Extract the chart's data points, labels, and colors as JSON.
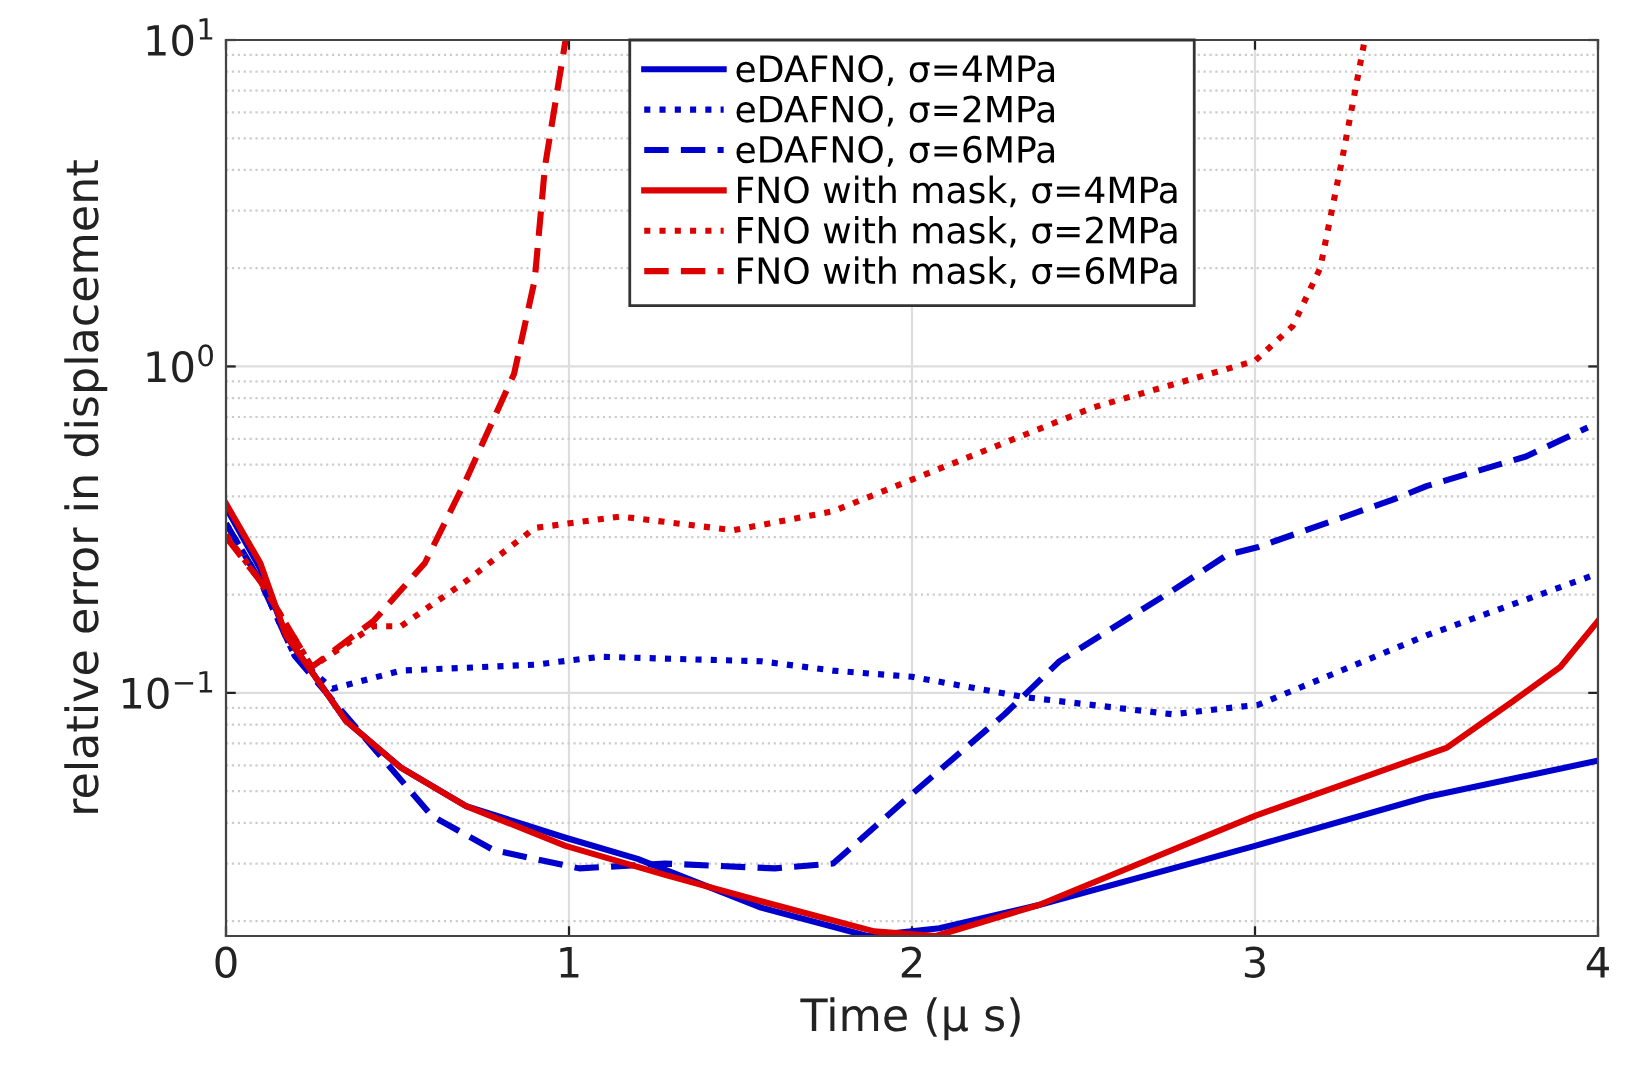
{
  "chart_data": {
    "type": "line",
    "xlabel": "Time (μ s)",
    "ylabel": "relative error in displacement",
    "xlim": [
      0,
      4
    ],
    "xticks": [
      0,
      1,
      2,
      3,
      4
    ],
    "ylim": [
      0.018,
      10
    ],
    "yticks": [
      {
        "value": 0.1,
        "label": "10$^{−1}$"
      },
      {
        "value": 1,
        "label": "10$^{0}$"
      },
      {
        "value": 10,
        "label": "10$^{1}$"
      }
    ],
    "log": "y",
    "grid": true,
    "legend": "top",
    "marker": "none",
    "series": [
      {
        "name": "eDAFNO, σ=4MPa",
        "color": "#0000cc",
        "line_style": "solid",
        "x": [
          0,
          0.1,
          0.175,
          0.255,
          0.35,
          0.51,
          0.7,
          0.99,
          1.2,
          1.56,
          1.87,
          2.08,
          2.37,
          3.0,
          3.5,
          4.0
        ],
        "values": [
          0.37,
          0.24,
          0.15,
          0.114,
          0.082,
          0.059,
          0.045,
          0.036,
          0.031,
          0.022,
          0.018,
          0.019,
          0.0224,
          0.034,
          0.048,
          0.062
        ]
      },
      {
        "name": "eDAFNO, σ=2MPa",
        "color": "#0000cc",
        "line_style": "dotted",
        "x": [
          0,
          0.1,
          0.2,
          0.31,
          0.51,
          0.9,
          1.09,
          1.56,
          1.77,
          2.0,
          2.33,
          2.76,
          3.01,
          3.5,
          3.99
        ],
        "values": [
          0.33,
          0.22,
          0.13,
          0.103,
          0.117,
          0.122,
          0.129,
          0.125,
          0.117,
          0.112,
          0.097,
          0.086,
          0.092,
          0.15,
          0.23
        ]
      },
      {
        "name": "eDAFNO, σ=6MPa",
        "color": "#0000cc",
        "line_style": "dashed",
        "x": [
          0,
          0.1,
          0.2,
          0.35,
          0.6,
          0.78,
          1.03,
          1.28,
          1.6,
          1.77,
          2.0,
          2.27,
          2.43,
          2.76,
          2.92,
          3.01,
          3.4,
          3.5,
          3.79,
          3.97
        ],
        "values": [
          0.33,
          0.22,
          0.13,
          0.085,
          0.042,
          0.033,
          0.029,
          0.03,
          0.029,
          0.03,
          0.049,
          0.086,
          0.125,
          0.206,
          0.265,
          0.28,
          0.39,
          0.43,
          0.53,
          0.65
        ]
      },
      {
        "name": "FNO with mask, σ=4MPa",
        "color": "#dd0000",
        "line_style": "solid",
        "x": [
          0,
          0.1,
          0.175,
          0.255,
          0.35,
          0.51,
          0.7,
          0.99,
          1.28,
          1.56,
          1.89,
          2.07,
          2.37,
          3.0,
          3.56,
          3.75,
          3.89,
          4.0
        ],
        "values": [
          0.38,
          0.25,
          0.15,
          0.114,
          0.082,
          0.059,
          0.045,
          0.034,
          0.0277,
          0.023,
          0.0186,
          0.018,
          0.0224,
          0.042,
          0.068,
          0.094,
          0.12,
          0.166
        ]
      },
      {
        "name": "FNO with mask, σ=2MPa",
        "color": "#dd0000",
        "line_style": "dotted",
        "x": [
          0,
          0.1,
          0.25,
          0.43,
          0.51,
          0.7,
          0.9,
          1.15,
          1.48,
          1.77,
          2.0,
          2.53,
          3.0,
          3.11,
          3.19,
          3.25,
          3.32
        ],
        "values": [
          0.305,
          0.22,
          0.12,
          0.16,
          0.16,
          0.22,
          0.32,
          0.347,
          0.315,
          0.36,
          0.45,
          0.75,
          1.04,
          1.33,
          2.0,
          4.1,
          10
        ]
      },
      {
        "name": "FNO with mask, σ=6MPa",
        "color": "#dd0000",
        "line_style": "dashed",
        "x": [
          0,
          0.1,
          0.25,
          0.43,
          0.58,
          0.7,
          0.84,
          0.9,
          0.93,
          0.99
        ],
        "values": [
          0.3,
          0.22,
          0.12,
          0.166,
          0.25,
          0.45,
          0.95,
          1.84,
          4.1,
          10
        ]
      }
    ]
  }
}
